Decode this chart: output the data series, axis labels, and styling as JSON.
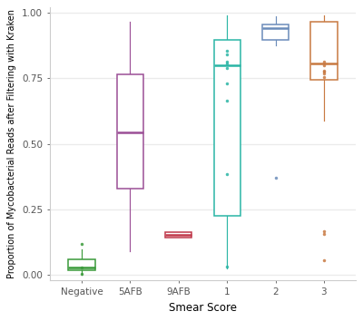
{
  "categories": [
    "Negative",
    "5AFB",
    "9AFB",
    "1",
    "2",
    "3"
  ],
  "xlabel": "Smear Score",
  "ylabel": "Proportion of Mycobacterial Reads after Filtering with Kraken",
  "ylim": [
    -0.02,
    1.02
  ],
  "yticks": [
    0.0,
    0.25,
    0.5,
    0.75,
    1.0
  ],
  "ytick_labels": [
    "0.00",
    "0.25",
    "0.50",
    "0.75",
    "1.00"
  ],
  "background_color": "#ffffff",
  "grid_color": "#ebebeb",
  "box_colors": [
    "#3a9a3a",
    "#9b4f96",
    "#c0394b",
    "#2ab5a5",
    "#6b8cba",
    "#c87941"
  ],
  "boxes": [
    {
      "label": "Negative",
      "q1": 0.018,
      "median": 0.028,
      "q3": 0.058,
      "whisker_low": 0.0,
      "whisker_high": 0.098,
      "outliers": [
        0.118,
        0.005,
        0.028
      ]
    },
    {
      "label": "5AFB",
      "q1": 0.33,
      "median": 0.545,
      "q3": 0.765,
      "whisker_low": 0.09,
      "whisker_high": 0.965,
      "outliers": []
    },
    {
      "label": "9AFB",
      "q1": 0.142,
      "median": 0.153,
      "q3": 0.163,
      "whisker_low": 0.142,
      "whisker_high": 0.163,
      "outliers": []
    },
    {
      "label": "1",
      "q1": 0.225,
      "median": 0.8,
      "q3": 0.895,
      "whisker_low": 0.025,
      "whisker_high": 0.99,
      "outliers": [
        0.73,
        0.665,
        0.385,
        0.84,
        0.815,
        0.805,
        0.79,
        0.03,
        0.855
      ]
    },
    {
      "label": "2",
      "q1": 0.895,
      "median": 0.943,
      "q3": 0.955,
      "whisker_low": 0.875,
      "whisker_high": 0.985,
      "outliers": [
        0.37
      ]
    },
    {
      "label": "3",
      "q1": 0.745,
      "median": 0.805,
      "q3": 0.965,
      "whisker_low": 0.59,
      "whisker_high": 0.99,
      "outliers": [
        0.055,
        0.155,
        0.165,
        0.815,
        0.78,
        0.775,
        0.77,
        0.755,
        0.8
      ]
    }
  ]
}
